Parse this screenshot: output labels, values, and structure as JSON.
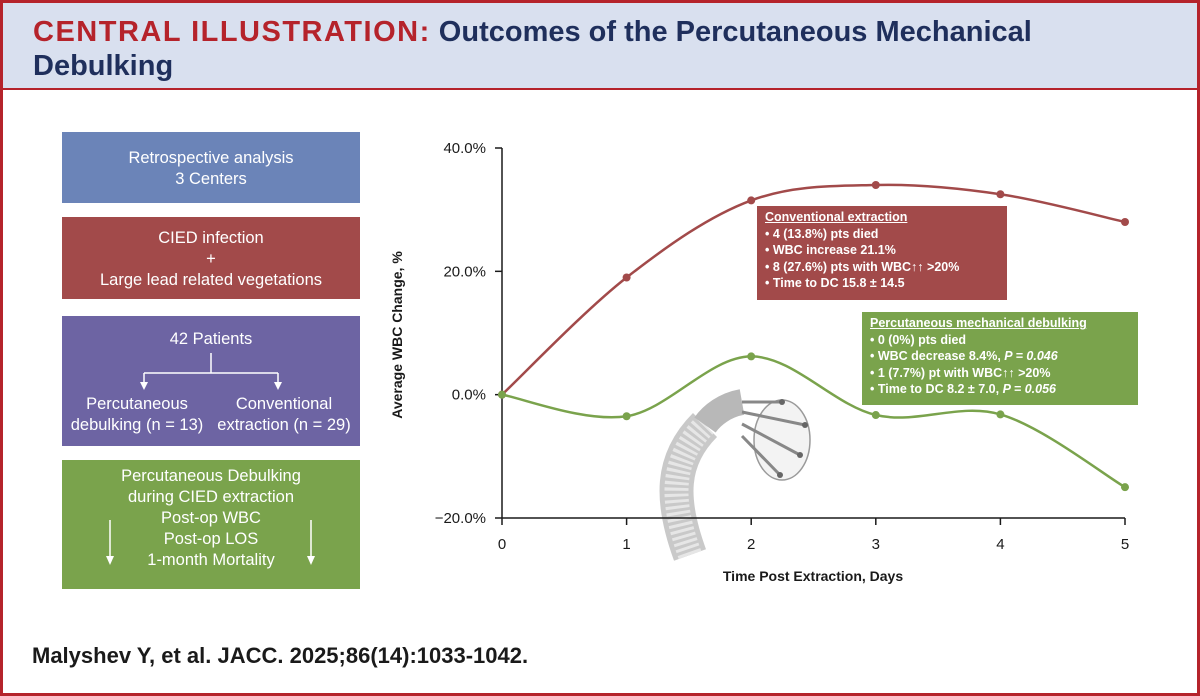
{
  "header": {
    "title_lead": "CENTRAL ILLUSTRATION:",
    "title_rest": "Outcomes of the Percutaneous Mechanical Debulking"
  },
  "left_panel": {
    "box1": {
      "line1": "Retrospective analysis",
      "line2": "3 Centers"
    },
    "box2": {
      "line1": "CIED infection",
      "line2": "+",
      "line3": "Large lead related vegetations"
    },
    "box3": {
      "title": "42 Patients",
      "left_line1": "Percutaneous",
      "left_line2": "debulking (n = 13)",
      "right_line1": "Conventional",
      "right_line2": "extraction (n = 29)"
    },
    "box4": {
      "line1": "Percutaneous Debulking",
      "line2": "during CIED extraction",
      "line3": "Post-op WBC",
      "line4": "Post-op LOS",
      "line5": "1-month Mortality"
    }
  },
  "callouts": {
    "conventional": {
      "title": "Conventional extraction",
      "items": [
        "• 4 (13.8%) pts died",
        "• WBC increase 21.1%",
        "• 8 (27.6%) pts with WBC↑↑ >20%",
        "• Time to DC 15.8 ± 14.5"
      ]
    },
    "percutaneous": {
      "title": "Percutaneous mechanical debulking",
      "item1": "• 0 (0%) pts died",
      "item2_text": "• WBC decrease 8.4%, ",
      "item2_p": "P = 0.046",
      "item3": "• 1 (7.7%) pt with WBC↑↑ >20%",
      "item4_text": "• Time to DC 8.2 ± 7.0, ",
      "item4_p": "P = 0.056"
    }
  },
  "citation": "Malyshev Y, et al. JACC. 2025;86(14):1033-1042.",
  "colors": {
    "brand_red": "#b5232b",
    "navy": "#1f2f5c",
    "conventional": "#a24a4a",
    "percutaneous": "#7aa34c"
  },
  "chart_data": {
    "type": "line",
    "title": "",
    "xlabel": "Time Post Extraction, Days",
    "ylabel": "Average WBC Change, %",
    "x": [
      0,
      1,
      2,
      3,
      4,
      5
    ],
    "x_ticks": [
      "0",
      "1",
      "2",
      "3",
      "4",
      "5"
    ],
    "ylim": [
      -20,
      40
    ],
    "y_ticks": [
      -20,
      0,
      20,
      40
    ],
    "y_tick_labels": [
      "−20.0%",
      "0.0%",
      "20.0%",
      "40.0%"
    ],
    "grid": false,
    "series": [
      {
        "color": "#a24a4a",
        "values": [
          0,
          19,
          31.5,
          34,
          32.5,
          28
        ]
      },
      {
        "color": "#7aa34c",
        "values": [
          0,
          -3.5,
          6.2,
          -3.3,
          -3.2,
          -15
        ]
      }
    ]
  }
}
